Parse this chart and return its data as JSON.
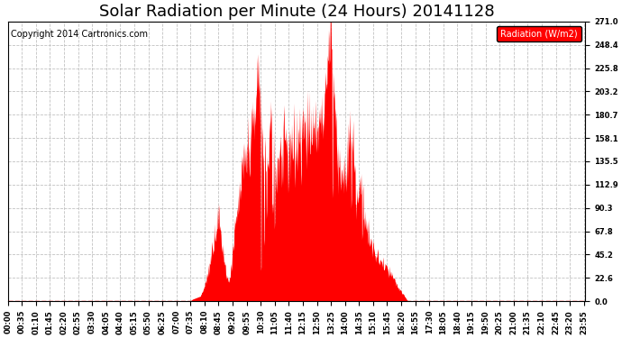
{
  "title": "Solar Radiation per Minute (24 Hours) 20141128",
  "copyright_text": "Copyright 2014 Cartronics.com",
  "ylabel": "Radiation (W/m2)",
  "fill_color": "#FF0000",
  "line_color": "#FF0000",
  "background_color": "#FFFFFF",
  "grid_color": "#BBBBBB",
  "dashed_line_color": "#FF0000",
  "ylim": [
    0.0,
    271.0
  ],
  "yticks": [
    0.0,
    22.6,
    45.2,
    67.8,
    90.3,
    112.9,
    135.5,
    158.1,
    180.7,
    203.2,
    225.8,
    248.4,
    271.0
  ],
  "legend_box_color": "#FF0000",
  "legend_text_color": "#FFFFFF",
  "title_fontsize": 13,
  "tick_fontsize": 6,
  "copyright_fontsize": 7
}
